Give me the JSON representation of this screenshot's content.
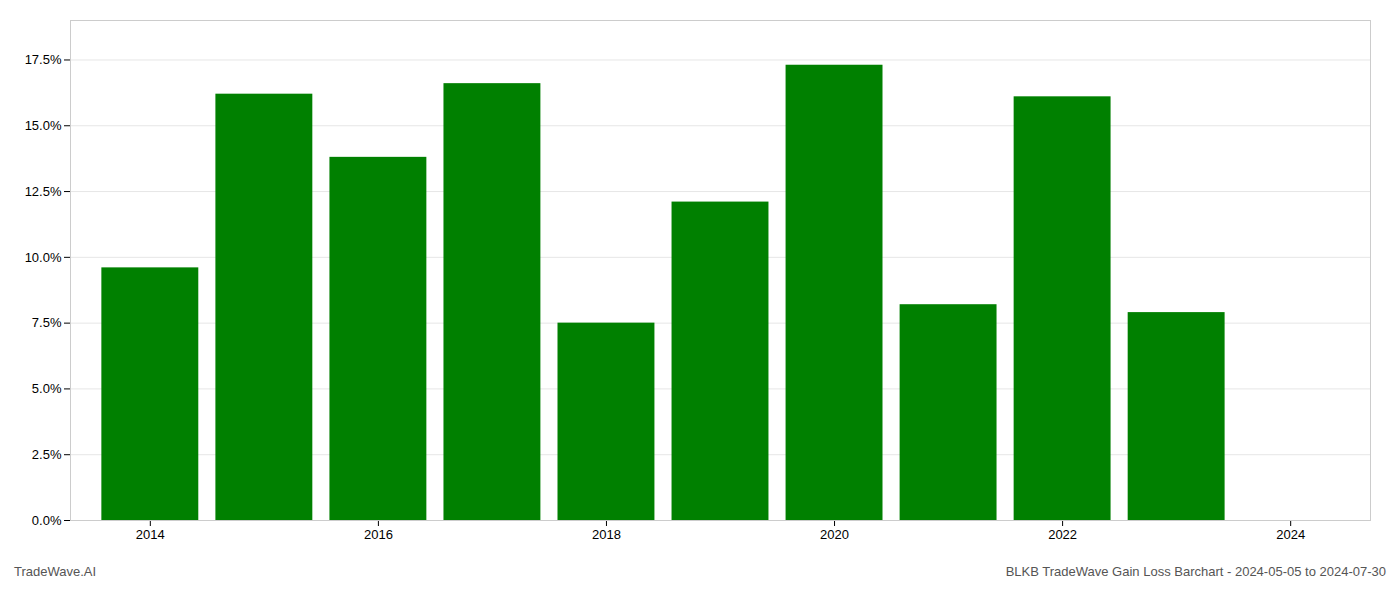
{
  "chart_data": {
    "type": "bar",
    "x": [
      2014,
      2015,
      2016,
      2017,
      2018,
      2019,
      2020,
      2021,
      2022,
      2023
    ],
    "values": [
      0.096,
      0.162,
      0.138,
      0.166,
      0.075,
      0.121,
      0.173,
      0.082,
      0.161,
      0.079
    ],
    "color": "#008000",
    "xlim": [
      2013.3,
      2024.7
    ],
    "xticks": [
      2014,
      2016,
      2018,
      2020,
      2022,
      2024
    ],
    "ylim": [
      0,
      0.19
    ],
    "yticks": [
      {
        "value": 0.0,
        "label": "0.0%"
      },
      {
        "value": 0.025,
        "label": "2.5%"
      },
      {
        "value": 0.05,
        "label": "5.0%"
      },
      {
        "value": 0.075,
        "label": "7.5%"
      },
      {
        "value": 0.1,
        "label": "10.0%"
      },
      {
        "value": 0.125,
        "label": "12.5%"
      },
      {
        "value": 0.15,
        "label": "15.0%"
      },
      {
        "value": 0.175,
        "label": "17.5%"
      }
    ],
    "grid": true,
    "annotations": [
      "TradeWave.AI",
      "BLKB TradeWave Gain Loss Barchart - 2024-05-05 to 2024-07-30"
    ]
  }
}
